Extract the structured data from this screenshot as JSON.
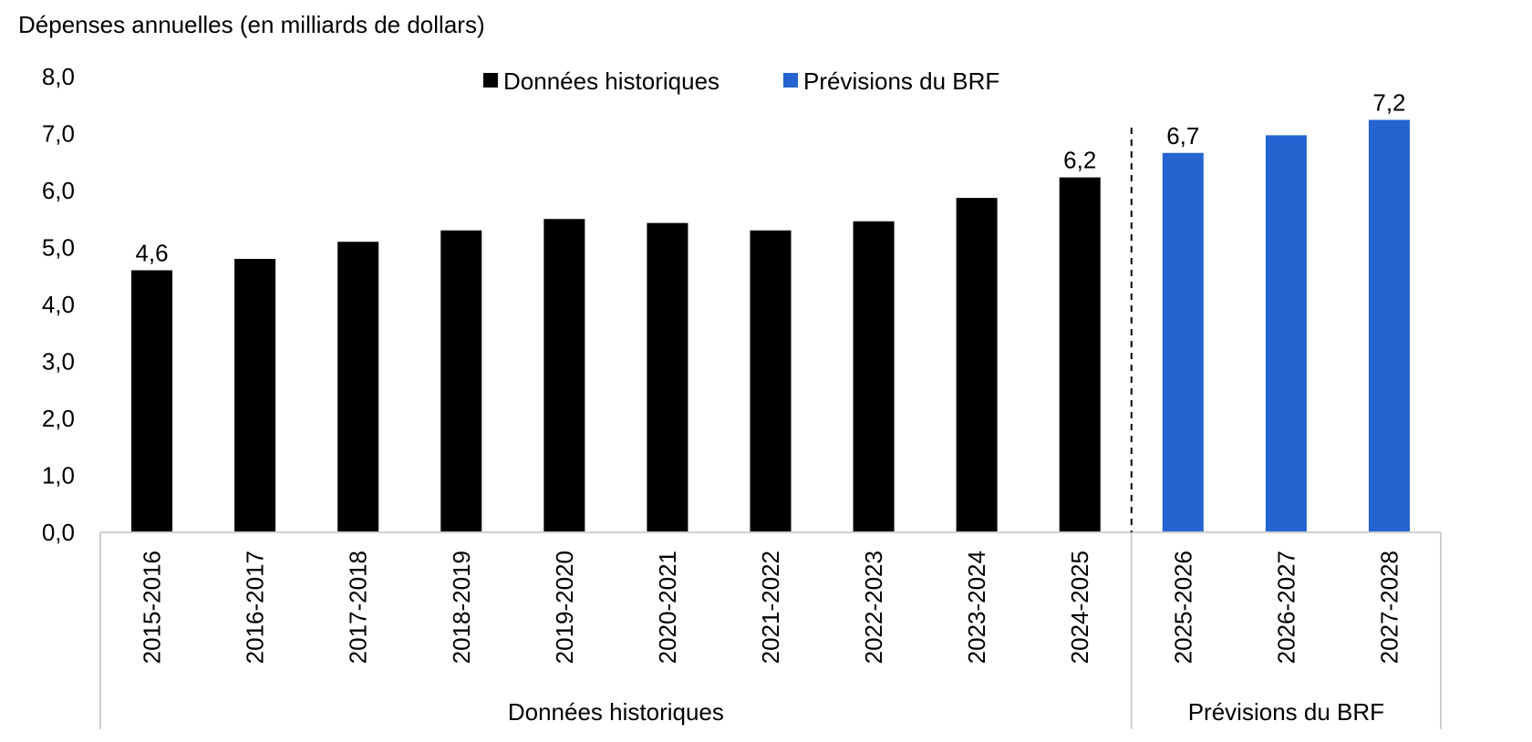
{
  "chart_data": {
    "type": "bar",
    "ylabel": "Dépenses annuelles (en milliards de dollars)",
    "ylim": [
      0,
      8
    ],
    "yticks": [
      "0,0",
      "1,0",
      "2,0",
      "3,0",
      "4,0",
      "5,0",
      "6,0",
      "7,0",
      "8,0"
    ],
    "categories": [
      "2015-2016",
      "2016-2017",
      "2017-2018",
      "2018-2019",
      "2019-2020",
      "2020-2021",
      "2021-2022",
      "2022-2023",
      "2023-2024",
      "2024-2025",
      "2025-2026",
      "2026-2027",
      "2027-2028"
    ],
    "values": [
      4.6,
      4.8,
      5.1,
      5.3,
      5.5,
      5.43,
      5.3,
      5.46,
      5.87,
      6.23,
      6.66,
      6.97,
      7.24
    ],
    "category_groups": [
      0,
      0,
      0,
      0,
      0,
      0,
      0,
      0,
      0,
      0,
      1,
      1,
      1
    ],
    "data_labels": [
      {
        "index": 0,
        "text": "4,6"
      },
      {
        "index": 9,
        "text": "6,2"
      },
      {
        "index": 10,
        "text": "6,7"
      },
      {
        "index": 12,
        "text": "7,2"
      }
    ],
    "series": [
      {
        "name": "Données historiques",
        "color": "#000000"
      },
      {
        "name": "Prévisions du BRF",
        "color": "#2563d1"
      }
    ],
    "groups": [
      "Données historiques",
      "Prévisions du BRF"
    ],
    "legend_position": "top-center",
    "separator_after_index": 9,
    "separator_style": "dashed",
    "grid": false
  }
}
